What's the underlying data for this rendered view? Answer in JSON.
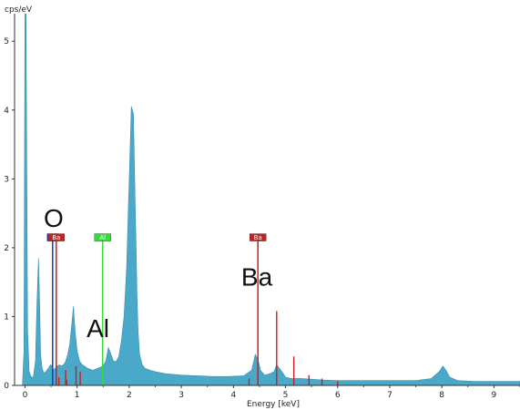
{
  "chart_data": {
    "type": "area",
    "ylabel": "cps/eV",
    "xlabel": "Energy [keV]",
    "xlim": [
      -0.2,
      9.5
    ],
    "ylim": [
      0,
      5.4
    ],
    "xticks": [
      0,
      1,
      2,
      3,
      4,
      5,
      6,
      7,
      8,
      9
    ],
    "yticks": [
      0,
      1,
      2,
      3,
      4,
      5
    ],
    "grid": false,
    "fill_color": "#4aa8c8",
    "series": [
      {
        "x": [
          -0.2,
          -0.05,
          -0.02,
          0.0,
          0.02,
          0.05,
          0.08,
          0.12,
          0.16,
          0.2,
          0.23,
          0.26,
          0.28,
          0.3,
          0.33,
          0.36,
          0.4,
          0.45,
          0.49,
          0.52,
          0.55,
          0.58,
          0.62,
          0.66,
          0.7,
          0.74,
          0.78,
          0.82,
          0.86,
          0.9,
          0.93,
          0.96,
          1.0,
          1.05,
          1.1,
          1.2,
          1.3,
          1.4,
          1.5,
          1.55,
          1.6,
          1.65,
          1.7,
          1.75,
          1.8,
          1.85,
          1.9,
          1.95,
          2.0,
          2.04,
          2.08,
          2.11,
          2.13,
          2.15,
          2.17,
          2.2,
          2.25,
          2.3,
          2.4,
          2.5,
          2.7,
          3.0,
          3.3,
          3.6,
          3.9,
          4.2,
          4.35,
          4.42,
          4.47,
          4.52,
          4.6,
          4.7,
          4.78,
          4.83,
          4.88,
          4.95,
          5.0,
          5.1,
          5.3,
          5.5,
          5.7,
          6.0,
          6.5,
          7.0,
          7.5,
          7.8,
          7.95,
          8.02,
          8.08,
          8.15,
          8.3,
          8.6,
          9.0,
          9.5
        ],
        "y": [
          0,
          0,
          0.5,
          5.5,
          5.5,
          0.8,
          0.2,
          0.12,
          0.12,
          0.35,
          1.2,
          1.85,
          1.2,
          0.45,
          0.25,
          0.18,
          0.2,
          0.25,
          0.3,
          0.28,
          0.22,
          0.25,
          0.28,
          0.3,
          0.28,
          0.3,
          0.35,
          0.45,
          0.6,
          0.9,
          1.15,
          0.8,
          0.5,
          0.35,
          0.3,
          0.25,
          0.22,
          0.25,
          0.28,
          0.35,
          0.55,
          0.45,
          0.35,
          0.35,
          0.42,
          0.65,
          1.0,
          1.7,
          3.0,
          4.05,
          3.95,
          2.8,
          2.1,
          1.3,
          0.8,
          0.45,
          0.3,
          0.25,
          0.22,
          0.2,
          0.17,
          0.15,
          0.14,
          0.13,
          0.13,
          0.14,
          0.22,
          0.45,
          0.38,
          0.22,
          0.15,
          0.17,
          0.2,
          0.3,
          0.25,
          0.18,
          0.12,
          0.1,
          0.1,
          0.09,
          0.08,
          0.07,
          0.07,
          0.07,
          0.07,
          0.1,
          0.2,
          0.28,
          0.22,
          0.12,
          0.07,
          0.06,
          0.06,
          0.06
        ]
      }
    ],
    "element_lines": [
      {
        "label": "O",
        "x": 0.53,
        "height": 2.15,
        "color": "#2233cc"
      },
      {
        "label": "Ba",
        "x": 0.6,
        "height": 2.15,
        "color": "#cc1e1e"
      },
      {
        "label": "Al",
        "x": 1.49,
        "height": 2.15,
        "color": "#33dd33"
      },
      {
        "label": "Ba",
        "x": 4.47,
        "height": 2.15,
        "color": "#cc1e1e"
      }
    ],
    "minor_lines": [
      {
        "x": 0.65,
        "height": 0.12,
        "color": "#cc1e1e"
      },
      {
        "x": 0.78,
        "height": 0.22,
        "color": "#cc1e1e"
      },
      {
        "x": 0.8,
        "height": 0.08,
        "color": "#cc1e1e"
      },
      {
        "x": 0.98,
        "height": 0.28,
        "color": "#cc1e1e"
      },
      {
        "x": 1.06,
        "height": 0.2,
        "color": "#cc1e1e"
      },
      {
        "x": 4.83,
        "height": 1.08,
        "color": "#cc1e1e"
      },
      {
        "x": 5.16,
        "height": 0.42,
        "color": "#cc1e1e"
      },
      {
        "x": 4.3,
        "height": 0.1,
        "color": "#cc1e1e"
      },
      {
        "x": 5.45,
        "height": 0.15,
        "color": "#cc1e1e"
      },
      {
        "x": 5.7,
        "height": 0.1,
        "color": "#cc1e1e"
      },
      {
        "x": 6.0,
        "height": 0.06,
        "color": "#cc1e1e"
      }
    ],
    "annotations": [
      {
        "text": "O",
        "x": 0.55,
        "y": 2.3
      },
      {
        "text": "Al",
        "x": 1.4,
        "y": 0.7
      },
      {
        "text": "Ba",
        "x": 4.45,
        "y": 1.45
      }
    ]
  }
}
